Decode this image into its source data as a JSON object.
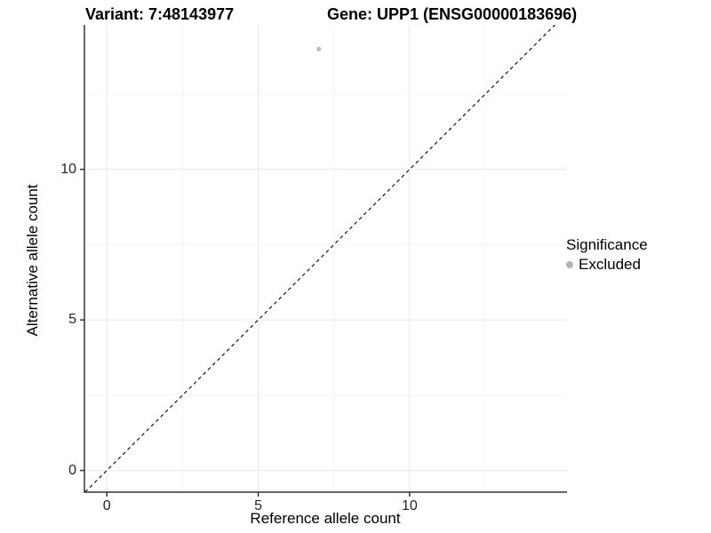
{
  "header": {
    "variant_title": "Variant: 7:48143977",
    "gene_title": "Gene: UPP1 (ENSG00000183696)"
  },
  "chart_data": {
    "type": "scatter",
    "title": "Variant: 7:48143977  /  Gene: UPP1 (ENSG00000183696)",
    "xlabel": "Reference allele count",
    "ylabel": "Alternative allele count",
    "x_ticks": [
      0,
      5,
      10
    ],
    "y_ticks": [
      0,
      5,
      10
    ],
    "x_minor_ticks": [
      2.5,
      7.5,
      12.5
    ],
    "y_minor_ticks": [
      2.5,
      7.5,
      12.5
    ],
    "xlim": [
      -0.74,
      15.2
    ],
    "ylim": [
      -0.72,
      14.8
    ],
    "grid": true,
    "legend_position": "right",
    "points": [
      {
        "x": 7,
        "y": 14,
        "series": "Excluded"
      }
    ],
    "identity_line": {
      "equation": "y = x",
      "style": "dashed",
      "color": "#000000"
    },
    "point_radius": 2.6
  },
  "legend": {
    "title": "Significance",
    "items": [
      {
        "label": "Excluded",
        "color": "#b5b5b5",
        "marker": "circle"
      }
    ]
  },
  "colors": {
    "background": "#ffffff",
    "axis_line": "#333333",
    "grid_major": "#e8e8e8",
    "grid_minor": "#f4f4f4",
    "tick_text": "#262626",
    "point": "#bdbdbd"
  }
}
